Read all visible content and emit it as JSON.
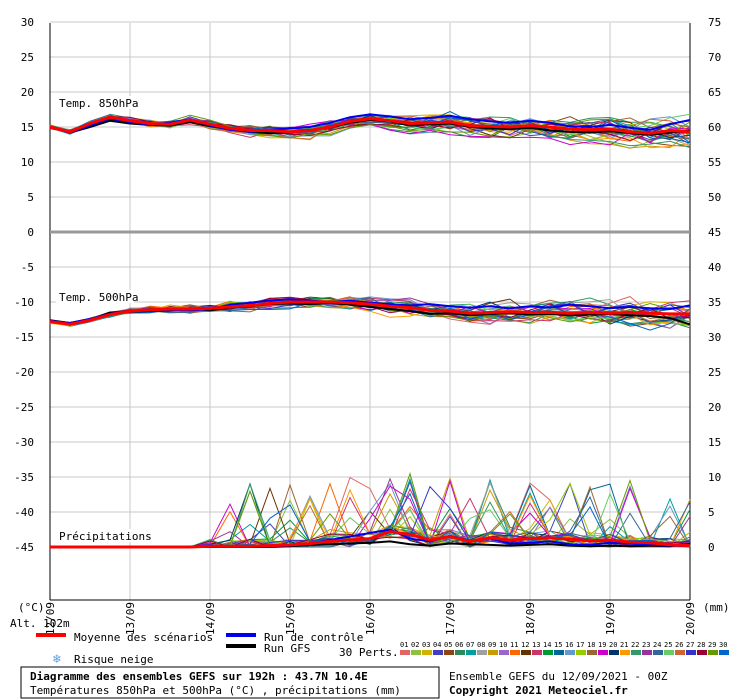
{
  "chart_data": {
    "type": "line",
    "title": "Diagramme des ensembles GEFS sur 192h : 43.7N 10.4E",
    "subtitle": "Températures 850hPa et 500hPa (°C) , précipitations (mm)",
    "left_unit": "(°C)",
    "right_unit": "(mm)",
    "altitude": "Alt. 102m",
    "run_info": "Ensemble GEFS du 12/09/2021 - 00Z",
    "copyright": "Copyright 2021 Meteociel.fr",
    "x_labels": [
      "12/09",
      "13/09",
      "14/09",
      "15/09",
      "16/09",
      "17/09",
      "18/09",
      "19/09",
      "20/09"
    ],
    "y_left_ticks": [
      30,
      25,
      20,
      15,
      10,
      5,
      0,
      -5,
      -10,
      -15,
      -20,
      -25,
      -30,
      -35,
      -40,
      -45
    ],
    "y_right_ticks": [
      75,
      70,
      65,
      60,
      55,
      50,
      45,
      40,
      35,
      30,
      25,
      20,
      15,
      10,
      5,
      0
    ],
    "panels": {
      "t850": {
        "label": "Temp. 850hPa",
        "ylim": [
          0,
          30
        ]
      },
      "t500": {
        "label": "Temp. 500hPa",
        "ylim": [
          -45,
          0
        ]
      },
      "precip": {
        "label": "Précipitations",
        "ylim": [
          0,
          15
        ]
      }
    },
    "x": [
      0,
      6,
      12,
      18,
      24,
      30,
      36,
      42,
      48,
      54,
      60,
      66,
      72,
      78,
      84,
      90,
      96,
      102,
      108,
      114,
      120,
      126,
      132,
      138,
      144,
      150,
      156,
      162,
      168,
      174,
      180,
      186,
      192
    ],
    "series": [
      {
        "name": "Moyenne des scénarios",
        "color": "#ff0000",
        "t850": [
          15,
          14.3,
          15.5,
          16.4,
          15.9,
          15.5,
          15.4,
          16,
          15.4,
          14.8,
          14.5,
          14.5,
          14.3,
          14.5,
          15,
          15.8,
          16.2,
          15.9,
          15.5,
          15.6,
          15.7,
          15.2,
          15.1,
          15,
          15.2,
          15,
          14.7,
          14.6,
          14.7,
          14.3,
          14.1,
          14.5,
          14.3
        ],
        "t500": [
          -12.8,
          -13.2,
          -12.6,
          -11.8,
          -11.3,
          -11.1,
          -11,
          -11,
          -10.9,
          -10.7,
          -10.5,
          -10.2,
          -10,
          -10,
          -10,
          -10.1,
          -10.3,
          -10.6,
          -10.8,
          -11.2,
          -11.3,
          -11.6,
          -11.5,
          -11.4,
          -11.5,
          -11.5,
          -11.6,
          -11.5,
          -11.6,
          -11.5,
          -11.6,
          -11.7,
          -11.7
        ],
        "precip": [
          0,
          0,
          0,
          0,
          0,
          0,
          0,
          0,
          0.1,
          0.1,
          0.1,
          0.2,
          0.3,
          0.5,
          0.8,
          1,
          1.2,
          2.2,
          1.8,
          1,
          1.5,
          0.8,
          1.3,
          1,
          1.2,
          1.3,
          1.1,
          0.9,
          1,
          0.7,
          0.6,
          0.3,
          0.2
        ]
      },
      {
        "name": "Run de contrôle",
        "color": "#0000ee",
        "t850": [
          15,
          14.2,
          15.2,
          16.2,
          15.7,
          15.3,
          15.6,
          16.1,
          15.2,
          14.6,
          14.3,
          14.6,
          14.8,
          15,
          15.6,
          16.4,
          16.8,
          16.5,
          16.1,
          16.3,
          16.6,
          16.1,
          15.8,
          15.6,
          15.9,
          15.6,
          15.1,
          15,
          15.3,
          14.9,
          14.6,
          15.4,
          16
        ],
        "t500": [
          -12.7,
          -13,
          -12.4,
          -11.7,
          -11.2,
          -11.3,
          -11.1,
          -11.2,
          -11,
          -10.4,
          -10.1,
          -9.8,
          -9.6,
          -9.8,
          -10,
          -9.8,
          -10.1,
          -10.3,
          -10.5,
          -10.3,
          -10.6,
          -10.8,
          -10.6,
          -10.9,
          -10.6,
          -10.8,
          -10.4,
          -10.6,
          -10.9,
          -10.7,
          -10.9,
          -11,
          -10.5
        ],
        "precip": [
          0,
          0,
          0,
          0,
          0,
          0,
          0,
          0,
          0,
          0,
          0,
          0.1,
          0.2,
          0.5,
          1,
          1.5,
          2,
          2.5,
          1.2,
          0.8,
          1.6,
          0.9,
          1.2,
          0.5,
          0.6,
          0.8,
          0.4,
          0.3,
          0.6,
          0.5,
          0.3,
          0.2,
          0.1
        ]
      },
      {
        "name": "Run GFS",
        "color": "#000000",
        "t850": [
          15,
          14.2,
          15,
          15.9,
          15.5,
          15.3,
          15.2,
          15.7,
          15.1,
          14.7,
          14.3,
          14.1,
          14.2,
          14.6,
          14.9,
          15.6,
          16,
          15.8,
          15.2,
          15.4,
          15.5,
          15,
          14.8,
          14.7,
          14.9,
          14.5,
          14.3,
          14.2,
          14.4,
          14.1,
          13.9,
          14.2,
          14.5
        ],
        "t500": [
          -12.6,
          -13,
          -12.5,
          -11.5,
          -11.4,
          -11.3,
          -11.2,
          -10.9,
          -11.2,
          -10.8,
          -10.6,
          -10.3,
          -10.2,
          -10.3,
          -10.1,
          -10.4,
          -10.7,
          -11,
          -11.3,
          -11.7,
          -11.6,
          -11.9,
          -11.7,
          -11.6,
          -11.8,
          -11.7,
          -11.9,
          -11.8,
          -11.7,
          -11.9,
          -12,
          -12.3,
          -13.2
        ],
        "precip": [
          0,
          0,
          0,
          0,
          0,
          0,
          0,
          0,
          0,
          0,
          0,
          0,
          0.1,
          0.3,
          0.4,
          0.5,
          0.6,
          0.8,
          0.4,
          0.2,
          0.5,
          0.4,
          0.3,
          0.2,
          0.3,
          0.4,
          0.2,
          0.1,
          0.2,
          0.1,
          0.2,
          0.1,
          0.5
        ]
      }
    ],
    "legend": {
      "mean": "Moyenne des scénarios",
      "control": "Run de contrôle",
      "gfs": "Run GFS",
      "snow": "Risque neige",
      "perts": "30 Perts.",
      "pert_numbers": [
        "01",
        "02",
        "03",
        "04",
        "05",
        "06",
        "07",
        "08",
        "09",
        "10",
        "11",
        "12",
        "13",
        "14",
        "15",
        "16",
        "17",
        "18",
        "19",
        "20",
        "21",
        "22",
        "23",
        "24",
        "25",
        "26",
        "27",
        "28",
        "29",
        "30"
      ],
      "pert_colors": [
        "#e06666",
        "#8fbf3f",
        "#d6b000",
        "#3f3fbf",
        "#8b4513",
        "#2e8b57",
        "#00a0a0",
        "#a0a0a0",
        "#cc9900",
        "#9966cc",
        "#ff6600",
        "#663300",
        "#cc3366",
        "#009933",
        "#006699",
        "#6699cc",
        "#99cc00",
        "#996633",
        "#cc00cc",
        "#003366",
        "#ff9900",
        "#339966",
        "#993399",
        "#336699",
        "#66cc66",
        "#cc6633",
        "#3333cc",
        "#990033",
        "#669900",
        "#0066cc"
      ]
    },
    "grid": true
  }
}
